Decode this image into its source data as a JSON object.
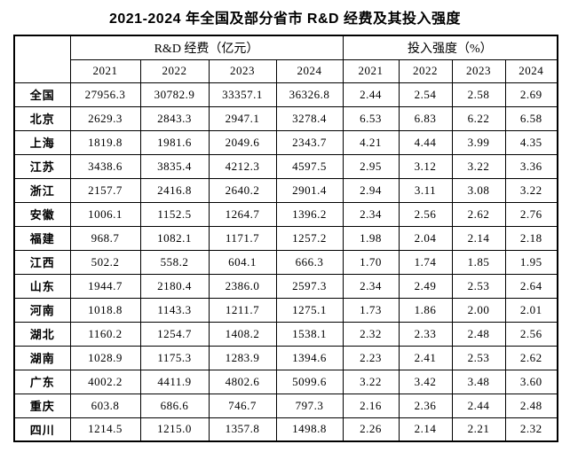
{
  "chart_data": {
    "type": "table",
    "title": "2021-2024 年全国及部分省市 R&D 经费及其投入强度",
    "corner_label": "",
    "column_groups": [
      {
        "label": "R&D 经费（亿元）",
        "years": [
          "2021",
          "2022",
          "2023",
          "2024"
        ]
      },
      {
        "label": "投入强度（%）",
        "years": [
          "2021",
          "2022",
          "2023",
          "2024"
        ]
      }
    ],
    "rd_unit": "亿元",
    "intensity_unit": "%",
    "rows": [
      {
        "region": "全国",
        "rd": [
          27956.3,
          30782.9,
          33357.1,
          36326.8
        ],
        "intensity": [
          2.44,
          2.54,
          2.58,
          2.69
        ]
      },
      {
        "region": "北京",
        "rd": [
          2629.3,
          2843.3,
          2947.1,
          3278.4
        ],
        "intensity": [
          6.53,
          6.83,
          6.22,
          6.58
        ]
      },
      {
        "region": "上海",
        "rd": [
          1819.8,
          1981.6,
          2049.6,
          2343.7
        ],
        "intensity": [
          4.21,
          4.44,
          3.99,
          4.35
        ]
      },
      {
        "region": "江苏",
        "rd": [
          3438.6,
          3835.4,
          4212.3,
          4597.5
        ],
        "intensity": [
          2.95,
          3.12,
          3.22,
          3.36
        ]
      },
      {
        "region": "浙江",
        "rd": [
          2157.7,
          2416.8,
          2640.2,
          2901.4
        ],
        "intensity": [
          2.94,
          3.11,
          3.08,
          3.22
        ]
      },
      {
        "region": "安徽",
        "rd": [
          1006.1,
          1152.5,
          1264.7,
          1396.2
        ],
        "intensity": [
          2.34,
          2.56,
          2.62,
          2.76
        ]
      },
      {
        "region": "福建",
        "rd": [
          968.7,
          1082.1,
          1171.7,
          1257.2
        ],
        "intensity": [
          1.98,
          2.04,
          2.14,
          2.18
        ]
      },
      {
        "region": "江西",
        "rd": [
          502.2,
          558.2,
          604.1,
          666.3
        ],
        "intensity": [
          1.7,
          1.74,
          1.85,
          1.95
        ]
      },
      {
        "region": "山东",
        "rd": [
          1944.7,
          2180.4,
          2386.0,
          2597.3
        ],
        "intensity": [
          2.34,
          2.49,
          2.53,
          2.64
        ]
      },
      {
        "region": "河南",
        "rd": [
          1018.8,
          1143.3,
          1211.7,
          1275.1
        ],
        "intensity": [
          1.73,
          1.86,
          2.0,
          2.01
        ]
      },
      {
        "region": "湖北",
        "rd": [
          1160.2,
          1254.7,
          1408.2,
          1538.1
        ],
        "intensity": [
          2.32,
          2.33,
          2.48,
          2.56
        ]
      },
      {
        "region": "湖南",
        "rd": [
          1028.9,
          1175.3,
          1283.9,
          1394.6
        ],
        "intensity": [
          2.23,
          2.41,
          2.53,
          2.62
        ]
      },
      {
        "region": "广东",
        "rd": [
          4002.2,
          4411.9,
          4802.6,
          5099.6
        ],
        "intensity": [
          3.22,
          3.42,
          3.48,
          3.6
        ]
      },
      {
        "region": "重庆",
        "rd": [
          603.8,
          686.6,
          746.7,
          797.3
        ],
        "intensity": [
          2.16,
          2.36,
          2.44,
          2.48
        ]
      },
      {
        "region": "四川",
        "rd": [
          1214.5,
          1215.0,
          1357.8,
          1498.8
        ],
        "intensity": [
          2.26,
          2.14,
          2.21,
          2.32
        ]
      }
    ]
  }
}
